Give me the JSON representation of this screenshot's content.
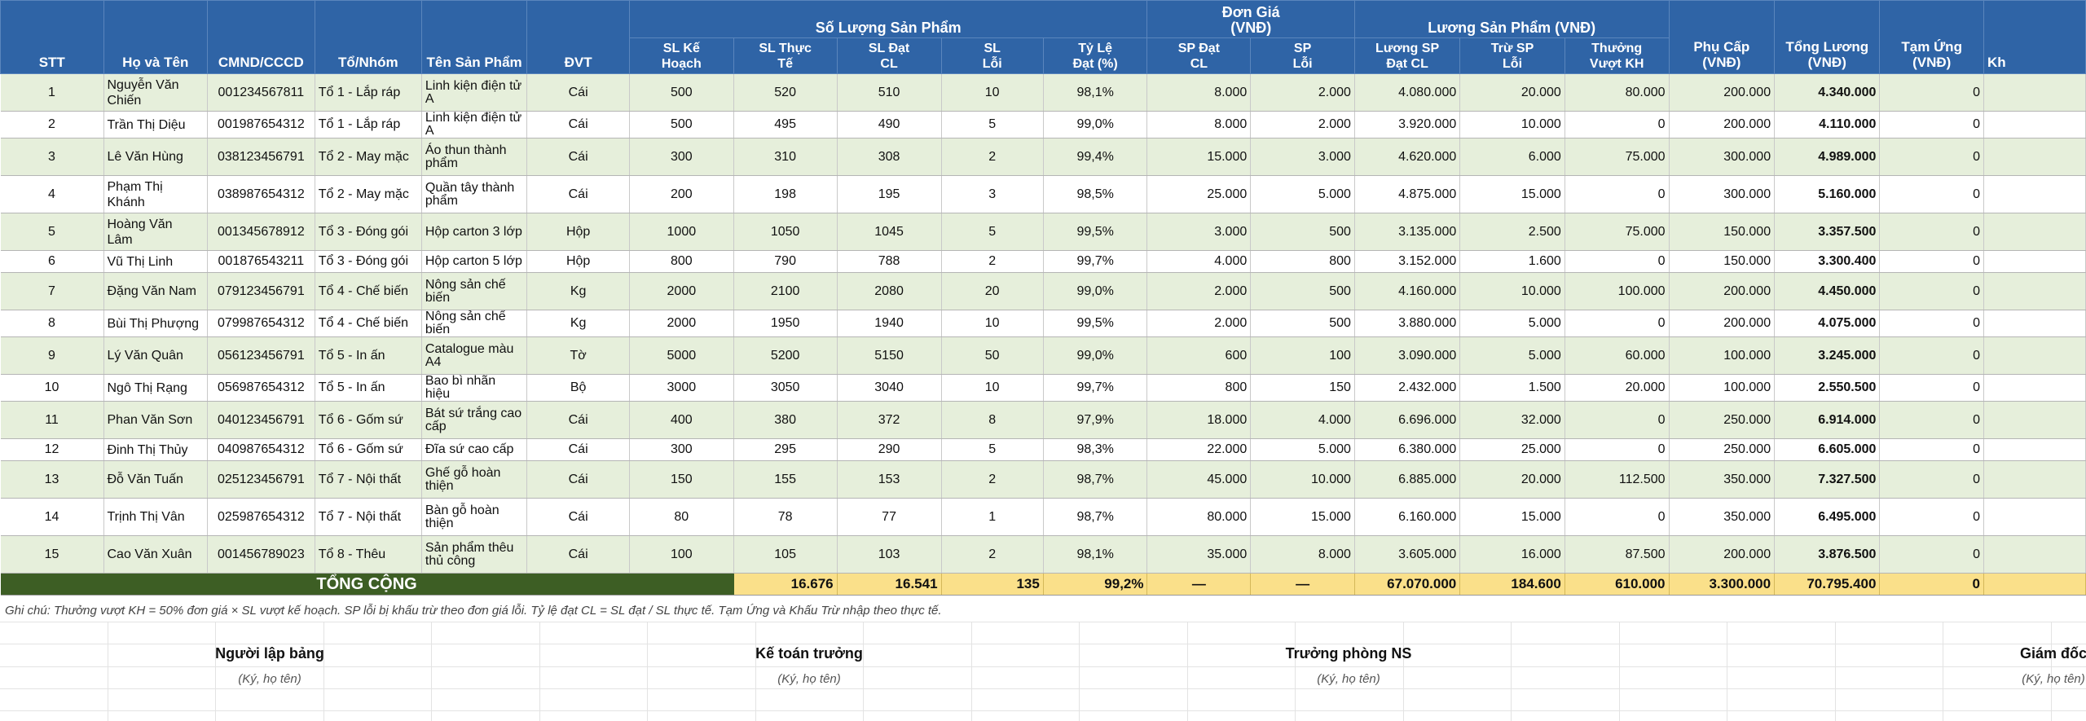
{
  "header": {
    "stt": "STT",
    "name": "Họ và Tên",
    "id": "CMND/CCCD",
    "team": "Tổ/Nhóm",
    "product": "Tên Sản Phẩm",
    "unit": "ĐVT",
    "qty_group": "Số Lượng Sản Phẩm",
    "price_group": "Đơn Giá\n(VNĐ)",
    "wage_group": "Lương Sản Phẩm (VNĐ)",
    "sl_plan": "SL Kế\nHoạch",
    "sl_actual": "SL Thực\nTế",
    "sl_pass": "SL Đạt\nCL",
    "sl_defect": "SL\nLỗi",
    "pass_rate": "Tỷ Lệ\nĐạt (%)",
    "price_pass": "SP Đạt\nCL",
    "price_defect": "SP\nLỗi",
    "wage_pass": "Lương SP\nĐạt CL",
    "deduct_defect": "Trừ SP\nLỗi",
    "bonus_over": "Thưởng\nVượt KH",
    "allowance": "Phụ Cấp\n(VNĐ)",
    "total_wage": "Tổng Lương\n(VNĐ)",
    "advance": "Tạm Ứng\n(VNĐ)",
    "cut_col": "Kh"
  },
  "rows": [
    {
      "stt": "1",
      "name": "Nguyễn Văn\nChiến",
      "id": "001234567811",
      "team": "Tổ 1 - Lắp ráp",
      "product": "Linh kiện điện tử\nA",
      "unit": "Cái",
      "plan": "500",
      "actual": "520",
      "pass": "510",
      "defect": "10",
      "rate": "98,1%",
      "p_pass": "8.000",
      "p_defect": "2.000",
      "w_pass": "4.080.000",
      "deduct": "20.000",
      "bonus": "80.000",
      "allow": "200.000",
      "total": "4.340.000",
      "adv": "0"
    },
    {
      "stt": "2",
      "name": "Trần Thị Diệu",
      "id": "001987654312",
      "team": "Tổ 1 - Lắp ráp",
      "product": "Linh kiện điện tử\nA",
      "unit": "Cái",
      "plan": "500",
      "actual": "495",
      "pass": "490",
      "defect": "5",
      "rate": "99,0%",
      "p_pass": "8.000",
      "p_defect": "2.000",
      "w_pass": "3.920.000",
      "deduct": "10.000",
      "bonus": "0",
      "allow": "200.000",
      "total": "4.110.000",
      "adv": "0"
    },
    {
      "stt": "3",
      "name": "Lê Văn Hùng",
      "id": "038123456791",
      "team": "Tổ 2 - May mặc",
      "product": "Áo thun thành\nphẩm",
      "unit": "Cái",
      "plan": "300",
      "actual": "310",
      "pass": "308",
      "defect": "2",
      "rate": "99,4%",
      "p_pass": "15.000",
      "p_defect": "3.000",
      "w_pass": "4.620.000",
      "deduct": "6.000",
      "bonus": "75.000",
      "allow": "300.000",
      "total": "4.989.000",
      "adv": "0"
    },
    {
      "stt": "4",
      "name": "Phạm Thị\nKhánh",
      "id": "038987654312",
      "team": "Tổ 2 - May mặc",
      "product": "Quần tây thành\nphẩm",
      "unit": "Cái",
      "plan": "200",
      "actual": "198",
      "pass": "195",
      "defect": "3",
      "rate": "98,5%",
      "p_pass": "25.000",
      "p_defect": "5.000",
      "w_pass": "4.875.000",
      "deduct": "15.000",
      "bonus": "0",
      "allow": "300.000",
      "total": "5.160.000",
      "adv": "0"
    },
    {
      "stt": "5",
      "name": "Hoàng Văn\nLâm",
      "id": "001345678912",
      "team": "Tổ 3 - Đóng gói",
      "product": "Hộp carton 3 lớp",
      "unit": "Hộp",
      "plan": "1000",
      "actual": "1050",
      "pass": "1045",
      "defect": "5",
      "rate": "99,5%",
      "p_pass": "3.000",
      "p_defect": "500",
      "w_pass": "3.135.000",
      "deduct": "2.500",
      "bonus": "75.000",
      "allow": "150.000",
      "total": "3.357.500",
      "adv": "0"
    },
    {
      "stt": "6",
      "name": "Vũ Thị Linh",
      "id": "001876543211",
      "team": "Tổ 3 - Đóng gói",
      "product": "Hộp carton 5 lớp",
      "unit": "Hộp",
      "plan": "800",
      "actual": "790",
      "pass": "788",
      "defect": "2",
      "rate": "99,7%",
      "p_pass": "4.000",
      "p_defect": "800",
      "w_pass": "3.152.000",
      "deduct": "1.600",
      "bonus": "0",
      "allow": "150.000",
      "total": "3.300.400",
      "adv": "0"
    },
    {
      "stt": "7",
      "name": "Đặng Văn Nam",
      "id": "079123456791",
      "team": "Tổ 4 - Chế biến",
      "product": "Nông sản chế\nbiến",
      "unit": "Kg",
      "plan": "2000",
      "actual": "2100",
      "pass": "2080",
      "defect": "20",
      "rate": "99,0%",
      "p_pass": "2.000",
      "p_defect": "500",
      "w_pass": "4.160.000",
      "deduct": "10.000",
      "bonus": "100.000",
      "allow": "200.000",
      "total": "4.450.000",
      "adv": "0"
    },
    {
      "stt": "8",
      "name": "Bùi Thị Phượng",
      "id": "079987654312",
      "team": "Tổ 4 - Chế biến",
      "product": "Nông sản chế\nbiến",
      "unit": "Kg",
      "plan": "2000",
      "actual": "1950",
      "pass": "1940",
      "defect": "10",
      "rate": "99,5%",
      "p_pass": "2.000",
      "p_defect": "500",
      "w_pass": "3.880.000",
      "deduct": "5.000",
      "bonus": "0",
      "allow": "200.000",
      "total": "4.075.000",
      "adv": "0"
    },
    {
      "stt": "9",
      "name": "Lý Văn Quân",
      "id": "056123456791",
      "team": "Tổ 5 - In ấn",
      "product": "Catalogue màu\nA4",
      "unit": "Tờ",
      "plan": "5000",
      "actual": "5200",
      "pass": "5150",
      "defect": "50",
      "rate": "99,0%",
      "p_pass": "600",
      "p_defect": "100",
      "w_pass": "3.090.000",
      "deduct": "5.000",
      "bonus": "60.000",
      "allow": "100.000",
      "total": "3.245.000",
      "adv": "0"
    },
    {
      "stt": "10",
      "name": "Ngô Thị Rạng",
      "id": "056987654312",
      "team": "Tổ 5 - In ấn",
      "product": "Bao bì nhãn hiệu",
      "unit": "Bộ",
      "plan": "3000",
      "actual": "3050",
      "pass": "3040",
      "defect": "10",
      "rate": "99,7%",
      "p_pass": "800",
      "p_defect": "150",
      "w_pass": "2.432.000",
      "deduct": "1.500",
      "bonus": "20.000",
      "allow": "100.000",
      "total": "2.550.500",
      "adv": "0"
    },
    {
      "stt": "11",
      "name": "Phan Văn Sơn",
      "id": "040123456791",
      "team": "Tổ 6 - Gốm sứ",
      "product": "Bát sứ trắng cao\ncấp",
      "unit": "Cái",
      "plan": "400",
      "actual": "380",
      "pass": "372",
      "defect": "8",
      "rate": "97,9%",
      "p_pass": "18.000",
      "p_defect": "4.000",
      "w_pass": "6.696.000",
      "deduct": "32.000",
      "bonus": "0",
      "allow": "250.000",
      "total": "6.914.000",
      "adv": "0"
    },
    {
      "stt": "12",
      "name": "Đinh Thị Thủy",
      "id": "040987654312",
      "team": "Tổ 6 - Gốm sứ",
      "product": "Đĩa sứ cao cấp",
      "unit": "Cái",
      "plan": "300",
      "actual": "295",
      "pass": "290",
      "defect": "5",
      "rate": "98,3%",
      "p_pass": "22.000",
      "p_defect": "5.000",
      "w_pass": "6.380.000",
      "deduct": "25.000",
      "bonus": "0",
      "allow": "250.000",
      "total": "6.605.000",
      "adv": "0"
    },
    {
      "stt": "13",
      "name": "Đỗ Văn Tuấn",
      "id": "025123456791",
      "team": "Tổ 7 - Nội thất",
      "product": "Ghế gỗ hoàn\nthiện",
      "unit": "Cái",
      "plan": "150",
      "actual": "155",
      "pass": "153",
      "defect": "2",
      "rate": "98,7%",
      "p_pass": "45.000",
      "p_defect": "10.000",
      "w_pass": "6.885.000",
      "deduct": "20.000",
      "bonus": "112.500",
      "allow": "350.000",
      "total": "7.327.500",
      "adv": "0"
    },
    {
      "stt": "14",
      "name": "Trịnh Thị Vân",
      "id": "025987654312",
      "team": "Tổ 7 - Nội thất",
      "product": "Bàn gỗ hoàn\nthiện",
      "unit": "Cái",
      "plan": "80",
      "actual": "78",
      "pass": "77",
      "defect": "1",
      "rate": "98,7%",
      "p_pass": "80.000",
      "p_defect": "15.000",
      "w_pass": "6.160.000",
      "deduct": "15.000",
      "bonus": "0",
      "allow": "350.000",
      "total": "6.495.000",
      "adv": "0"
    },
    {
      "stt": "15",
      "name": "Cao Văn Xuân",
      "id": "001456789023",
      "team": "Tổ 8 - Thêu",
      "product": "Sản phẩm thêu\nthủ công",
      "unit": "Cái",
      "plan": "100",
      "actual": "105",
      "pass": "103",
      "defect": "2",
      "rate": "98,1%",
      "p_pass": "35.000",
      "p_defect": "8.000",
      "w_pass": "3.605.000",
      "deduct": "16.000",
      "bonus": "87.500",
      "allow": "200.000",
      "total": "3.876.500",
      "adv": "0"
    }
  ],
  "totals": {
    "label": "TỔNG CỘNG",
    "actual": "16.676",
    "pass": "16.541",
    "defect": "135",
    "rate": "99,2%",
    "p_pass": "—",
    "p_defect": "—",
    "w_pass": "67.070.000",
    "deduct": "184.600",
    "bonus": "610.000",
    "allow": "3.300.000",
    "total": "70.795.400",
    "adv": "0"
  },
  "note": "Ghi chú: Thưởng vượt KH = 50% đơn giá × SL vượt kế hoạch. SP lỗi bị khấu trừ theo đơn giá lỗi. Tỷ lệ đạt CL = SL đạt / SL thực tế. Tạm Ứng và Khấu Trừ nhập theo thực tế.",
  "signatures": [
    {
      "title": "Người lập bảng",
      "sub": "(Ký, họ tên)"
    },
    {
      "title": "Kế toán trưởng",
      "sub": "(Ký, họ tên)"
    },
    {
      "title": "Trưởng phòng NS",
      "sub": "(Ký, họ tên)"
    },
    {
      "title": "Giám đốc",
      "sub": "(Ký, họ tên)"
    }
  ]
}
